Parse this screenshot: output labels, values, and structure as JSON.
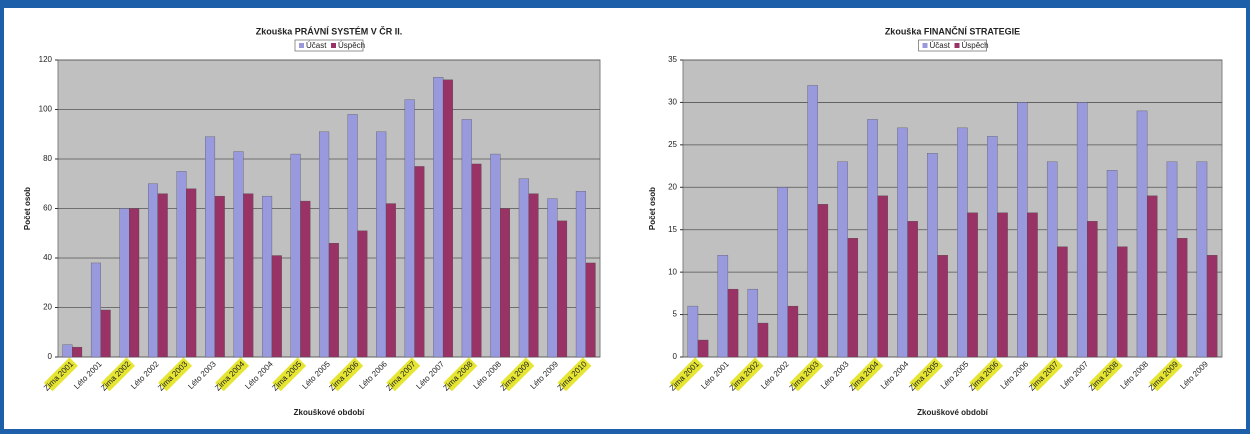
{
  "chart_data": [
    {
      "type": "bar",
      "title": "Zkouška PRÁVNÍ SYSTÉM V ČR II.",
      "y_label": "Počet osob",
      "x_label": "Zkouškové období",
      "categories": [
        "Zima 2001",
        "Léto 2001",
        "Zima 2002",
        "Léto 2002",
        "Zima 2003",
        "Léto 2003",
        "Zima 2004",
        "Léto 2004",
        "Zima 2005",
        "Léto 2005",
        "Zima 2006",
        "Léto 2006",
        "Zima 2007",
        "Léto 2007",
        "Zima 2008",
        "Léto 2008",
        "Zima 2009",
        "Léto 2009",
        "Zima 2010"
      ],
      "series": [
        {
          "name": "Účast",
          "color": "#9999dd",
          "values": [
            5,
            38,
            60,
            70,
            75,
            89,
            83,
            65,
            82,
            91,
            98,
            91,
            104,
            113,
            96,
            82,
            72,
            64,
            67
          ]
        },
        {
          "name": "Úspěch",
          "color": "#993366",
          "values": [
            4,
            19,
            60,
            66,
            68,
            65,
            66,
            41,
            63,
            46,
            51,
            62,
            77,
            112,
            78,
            60,
            66,
            55,
            38
          ]
        }
      ],
      "ylim": [
        0,
        120
      ],
      "yticks": [
        0,
        20,
        40,
        60,
        80,
        100,
        120
      ],
      "grid": true
    },
    {
      "type": "bar",
      "title": "Zkouška FINANČNÍ STRATEGIE",
      "y_label": "Počet osob",
      "x_label": "Zkouškové období",
      "categories": [
        "Zima 2001",
        "Léto 2001",
        "Zima 2002",
        "Léto 2002",
        "Zima 2003",
        "Léto 2003",
        "Zima 2004",
        "Léto 2004",
        "Zima 2005",
        "Léto 2005",
        "Zima 2006",
        "Léto 2006",
        "Zima 2007",
        "Léto 2007",
        "Zima 2008",
        "Léto 2008",
        "Zima 2009",
        "Léto 2009"
      ],
      "series": [
        {
          "name": "Účast",
          "color": "#9999dd",
          "values": [
            6,
            12,
            8,
            20,
            32,
            23,
            28,
            27,
            24,
            27,
            26,
            30,
            23,
            30,
            22,
            29,
            23,
            23
          ]
        },
        {
          "name": "Úspěch",
          "color": "#993366",
          "values": [
            2,
            8,
            4,
            6,
            18,
            14,
            19,
            16,
            12,
            17,
            17,
            17,
            13,
            16,
            13,
            19,
            14,
            12
          ]
        }
      ],
      "ylim": [
        0,
        35
      ],
      "yticks": [
        0,
        5,
        10,
        15,
        20,
        25,
        30,
        35
      ],
      "grid": true
    }
  ]
}
